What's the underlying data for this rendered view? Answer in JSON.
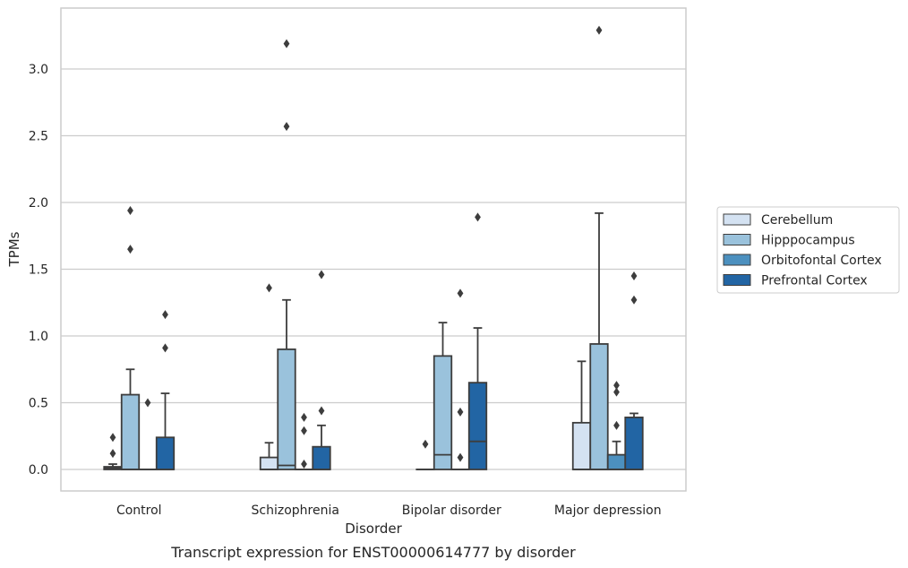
{
  "chart_data": {
    "type": "box",
    "caption": "Transcript expression for ENST00000614777 by disorder",
    "xlabel": "Disorder",
    "ylabel": "TPMs",
    "ylim": [
      -0.16,
      3.44
    ],
    "yticks": [
      0.0,
      0.5,
      1.0,
      1.5,
      2.0,
      2.5,
      3.0
    ],
    "ytick_labels": [
      "0.0",
      "0.5",
      "1.0",
      "1.5",
      "2.0",
      "2.5",
      "3.0"
    ],
    "grid": "horizontal",
    "legend_position": "right",
    "categories": [
      "Control",
      "Schizophrenia",
      "Bipolar disorder",
      "Major depression"
    ],
    "series": [
      {
        "name": "Cerebellum",
        "color": "#d4e2f2",
        "boxes": [
          {
            "whisker_low": 0.0,
            "q1": 0.0,
            "median": 0.01,
            "q3": 0.02,
            "whisker_high": 0.04,
            "outliers": [
              0.12,
              0.24
            ]
          },
          {
            "whisker_low": 0.0,
            "q1": 0.0,
            "median": 0.0,
            "q3": 0.09,
            "whisker_high": 0.2,
            "outliers": [
              1.36
            ]
          },
          {
            "whisker_low": 0.0,
            "q1": 0.0,
            "median": 0.0,
            "q3": 0.0,
            "whisker_high": 0.0,
            "outliers": [
              0.19
            ]
          },
          {
            "whisker_low": 0.0,
            "q1": 0.0,
            "median": 0.0,
            "q3": 0.35,
            "whisker_high": 0.81,
            "outliers": []
          }
        ]
      },
      {
        "name": "Hipppocampus",
        "color": "#9ac2dc",
        "boxes": [
          {
            "whisker_low": 0.0,
            "q1": 0.0,
            "median": 0.0,
            "q3": 0.56,
            "whisker_high": 0.75,
            "outliers": [
              1.65,
              1.94
            ]
          },
          {
            "whisker_low": 0.0,
            "q1": 0.0,
            "median": 0.03,
            "q3": 0.9,
            "whisker_high": 1.27,
            "outliers": [
              2.57,
              3.19
            ]
          },
          {
            "whisker_low": 0.0,
            "q1": 0.0,
            "median": 0.11,
            "q3": 0.85,
            "whisker_high": 1.1,
            "outliers": []
          },
          {
            "whisker_low": 0.0,
            "q1": 0.0,
            "median": 0.0,
            "q3": 0.94,
            "whisker_high": 1.92,
            "outliers": [
              3.29
            ]
          }
        ]
      },
      {
        "name": "Orbitofontal Cortex",
        "color": "#4c90bf",
        "boxes": [
          {
            "whisker_low": 0.0,
            "q1": 0.0,
            "median": 0.0,
            "q3": 0.0,
            "whisker_high": 0.0,
            "outliers": [
              0.5
            ]
          },
          {
            "whisker_low": 0.0,
            "q1": 0.0,
            "median": 0.0,
            "q3": 0.0,
            "whisker_high": 0.0,
            "outliers": [
              0.04,
              0.29,
              0.39
            ]
          },
          {
            "whisker_low": 0.0,
            "q1": 0.0,
            "median": 0.0,
            "q3": 0.0,
            "whisker_high": 0.0,
            "outliers": [
              0.09,
              0.43,
              1.32
            ]
          },
          {
            "whisker_low": 0.0,
            "q1": 0.0,
            "median": 0.0,
            "q3": 0.11,
            "whisker_high": 0.21,
            "outliers": [
              0.33,
              0.58,
              0.63
            ]
          }
        ]
      },
      {
        "name": "Prefrontal Cortex",
        "color": "#2265a4",
        "boxes": [
          {
            "whisker_low": 0.0,
            "q1": 0.0,
            "median": 0.0,
            "q3": 0.24,
            "whisker_high": 0.57,
            "outliers": [
              0.91,
              1.16
            ]
          },
          {
            "whisker_low": 0.0,
            "q1": 0.0,
            "median": 0.0,
            "q3": 0.17,
            "whisker_high": 0.33,
            "outliers": [
              0.44,
              1.46
            ]
          },
          {
            "whisker_low": 0.0,
            "q1": 0.0,
            "median": 0.21,
            "q3": 0.65,
            "whisker_high": 1.06,
            "outliers": [
              1.89
            ]
          },
          {
            "whisker_low": 0.0,
            "q1": 0.0,
            "median": 0.0,
            "q3": 0.39,
            "whisker_high": 0.42,
            "outliers": [
              1.27,
              1.45
            ]
          }
        ]
      }
    ]
  }
}
